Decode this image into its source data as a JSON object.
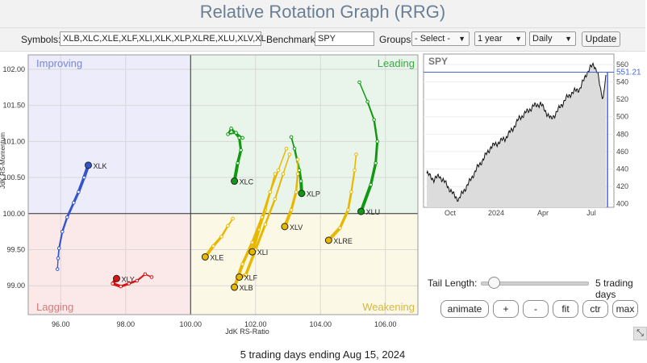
{
  "page": {
    "title": "Relative Rotation Graph (RRG)",
    "footer": "5 trading days ending Aug 15, 2024"
  },
  "toolbar": {
    "symbols_label": "Symbols:",
    "symbols_value": "XLB,XLC,XLE,XLF,XLI,XLK,XLP,XLRE,XLU,XLV,XL",
    "benchmark_label": "Benchmark:",
    "benchmark_value": "SPY",
    "groups_label": "Groups:",
    "groups_selected": "- Select -",
    "period_selected": "1 year",
    "frequency_selected": "Daily",
    "update_label": "Update"
  },
  "rrg": {
    "x_axis_label": "JdK RS-Ratio",
    "y_axis_label": "JdK RS-Momentum",
    "x_ticks": [
      "96.00",
      "98.00",
      "100.00",
      "102.00",
      "104.00",
      "106.00"
    ],
    "y_ticks": [
      "102.00",
      "101.50",
      "101.00",
      "100.50",
      "100.00",
      "99.50",
      "99.00"
    ],
    "quadrants": {
      "improving": "Improving",
      "leading": "Leading",
      "lagging": "Lagging",
      "weakening": "Weakening"
    },
    "quadrant_colors": {
      "improving": "#ececfa",
      "leading": "#e9f5ea",
      "lagging": "#fbe9e9",
      "weakening": "#fbf8e6"
    },
    "tails": [
      {
        "symbol": "XLK",
        "color": "#3355cc",
        "points": [
          [
            95.9,
            99.23
          ],
          [
            95.92,
            99.38
          ],
          [
            95.95,
            99.52
          ],
          [
            96.05,
            99.75
          ],
          [
            96.2,
            99.95
          ],
          [
            96.4,
            100.15
          ],
          [
            96.55,
            100.3
          ],
          [
            96.72,
            100.5
          ],
          [
            96.85,
            100.67
          ]
        ]
      },
      {
        "symbol": "XLY",
        "color": "#dd1111",
        "points": [
          [
            98.8,
            99.12
          ],
          [
            98.6,
            99.16
          ],
          [
            98.35,
            99.07
          ],
          [
            98.1,
            99.03
          ],
          [
            97.85,
            98.99
          ],
          [
            97.6,
            99.03
          ],
          [
            97.72,
            99.1
          ]
        ]
      },
      {
        "symbol": "XLC",
        "color": "#119911",
        "points": [
          [
            101.6,
            101.05
          ],
          [
            101.4,
            101.12
          ],
          [
            101.15,
            101.1
          ],
          [
            101.25,
            101.18
          ],
          [
            101.5,
            101.05
          ],
          [
            101.55,
            100.88
          ],
          [
            101.45,
            100.7
          ],
          [
            101.35,
            100.45
          ]
        ]
      },
      {
        "symbol": "XLP",
        "color": "#119911",
        "points": [
          [
            103.1,
            101.06
          ],
          [
            103.2,
            100.9
          ],
          [
            103.35,
            100.6
          ],
          [
            103.4,
            100.45
          ],
          [
            103.42,
            100.28
          ]
        ]
      },
      {
        "symbol": "XLU",
        "color": "#119911",
        "points": [
          [
            105.2,
            101.82
          ],
          [
            105.45,
            101.55
          ],
          [
            105.65,
            101.3
          ],
          [
            105.75,
            101.0
          ],
          [
            105.7,
            100.7
          ],
          [
            105.55,
            100.4
          ],
          [
            105.25,
            100.03
          ]
        ]
      },
      {
        "symbol": "XLV",
        "color": "#e8b800",
        "points": [
          [
            103.3,
            100.75
          ],
          [
            103.3,
            100.55
          ],
          [
            103.25,
            100.3
          ],
          [
            103.1,
            100.05
          ],
          [
            102.9,
            99.82
          ]
        ]
      },
      {
        "symbol": "XLRE",
        "color": "#e8b800",
        "points": [
          [
            105.1,
            100.82
          ],
          [
            105.05,
            100.6
          ],
          [
            104.95,
            100.3
          ],
          [
            104.85,
            100.05
          ],
          [
            104.6,
            99.8
          ],
          [
            104.25,
            99.63
          ]
        ]
      },
      {
        "symbol": "XLE",
        "color": "#e8b800",
        "points": [
          [
            101.3,
            99.93
          ],
          [
            101.15,
            99.83
          ],
          [
            100.95,
            99.68
          ],
          [
            100.7,
            99.55
          ],
          [
            100.45,
            99.4
          ]
        ]
      },
      {
        "symbol": "XLI",
        "color": "#e8b800",
        "points": [
          [
            102.6,
            100.55
          ],
          [
            102.45,
            100.3
          ],
          [
            102.3,
            100.05
          ],
          [
            102.1,
            99.78
          ],
          [
            101.9,
            99.47
          ]
        ]
      },
      {
        "symbol": "XLF",
        "color": "#e8b800",
        "points": [
          [
            103.05,
            100.82
          ],
          [
            102.85,
            100.55
          ],
          [
            102.6,
            100.2
          ],
          [
            102.3,
            99.85
          ],
          [
            102.0,
            99.5
          ],
          [
            101.7,
            99.15
          ],
          [
            101.5,
            99.12
          ]
        ]
      },
      {
        "symbol": "XLB",
        "color": "#e8b800",
        "points": [
          [
            102.95,
            100.9
          ],
          [
            102.7,
            100.6
          ],
          [
            102.45,
            100.3
          ],
          [
            102.2,
            99.95
          ],
          [
            101.9,
            99.6
          ],
          [
            101.6,
            99.3
          ],
          [
            101.35,
            98.98
          ]
        ]
      }
    ]
  },
  "mini_chart": {
    "symbol": "SPY",
    "last_value": "551.21",
    "y_ticks": [
      "560",
      "540",
      "520",
      "500",
      "480",
      "460",
      "440",
      "420",
      "400"
    ],
    "x_ticks": [
      "Oct",
      "2024",
      "Apr",
      "Jul"
    ],
    "line_color": "#111111",
    "fill_color": "#dcdcdc",
    "reference_color": "#4466dd"
  },
  "chart_data": {
    "type": "scatter",
    "title": "Relative Rotation Graph (RRG)",
    "xlabel": "JdK RS-Ratio",
    "ylabel": "JdK RS-Momentum",
    "xlim": [
      95.0,
      107.0
    ],
    "ylim": [
      98.6,
      102.2
    ],
    "grid": true,
    "series": [
      {
        "name": "XLK",
        "x": [
          96.85
        ],
        "y": [
          100.67
        ]
      },
      {
        "name": "XLY",
        "x": [
          97.72
        ],
        "y": [
          99.1
        ]
      },
      {
        "name": "XLC",
        "x": [
          101.35
        ],
        "y": [
          100.45
        ]
      },
      {
        "name": "XLP",
        "x": [
          103.42
        ],
        "y": [
          100.28
        ]
      },
      {
        "name": "XLU",
        "x": [
          105.25
        ],
        "y": [
          100.03
        ]
      },
      {
        "name": "XLV",
        "x": [
          102.9
        ],
        "y": [
          99.82
        ]
      },
      {
        "name": "XLRE",
        "x": [
          104.25
        ],
        "y": [
          99.63
        ]
      },
      {
        "name": "XLE",
        "x": [
          100.45
        ],
        "y": [
          99.4
        ]
      },
      {
        "name": "XLI",
        "x": [
          101.9
        ],
        "y": [
          99.47
        ]
      },
      {
        "name": "XLF",
        "x": [
          101.5
        ],
        "y": [
          99.12
        ]
      },
      {
        "name": "XLB",
        "x": [
          101.35
        ],
        "y": [
          98.98
        ]
      }
    ]
  },
  "controls": {
    "tail_length_label": "Tail Length:",
    "tail_length_value": "5 trading days",
    "tail_length_fraction": 0.12,
    "animate": "animate",
    "plus": "+",
    "minus": "-",
    "fit": "fit",
    "ctr": "ctr",
    "max": "max"
  }
}
